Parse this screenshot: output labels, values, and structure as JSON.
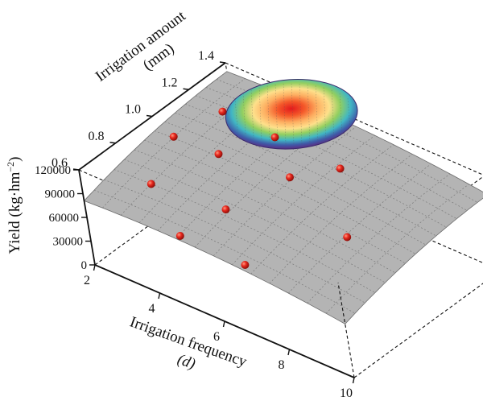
{
  "chart_data": {
    "type": "surface3d",
    "x_axis": {
      "label_line1": "Irrigation frequency",
      "label_line2": "(d)",
      "range": [
        2,
        10
      ],
      "ticks": [
        "2",
        "4",
        "6",
        "8",
        "10"
      ]
    },
    "y_axis": {
      "label_line1": "Irrigation amount",
      "label_line2": "(mm)",
      "range": [
        0.6,
        1.4
      ],
      "ticks": [
        "0.6",
        "0.8",
        "1.0",
        "1.2",
        "1.4"
      ]
    },
    "z_axis": {
      "label_main": "Yield (kg·hm",
      "label_sup": "−2",
      "label_end": ")",
      "range": [
        0,
        120000
      ],
      "ticks": [
        "0",
        "30000",
        "60000",
        "90000",
        "120000"
      ]
    },
    "surface": {
      "color": "#b4b4b4",
      "grid_color": "#7a7a7a"
    },
    "heat_spot": {
      "center": {
        "x": 4.4,
        "y": 1.33
      },
      "colors": [
        "#e31a1c",
        "#fd8d3c",
        "#fee08b",
        "#91cf60",
        "#41b6c4",
        "#3f5aa8",
        "#5b2c83"
      ]
    },
    "points": [
      {
        "x": 2.6,
        "y": 1.0,
        "z": 105000
      },
      {
        "x": 3.0,
        "y": 1.2,
        "z": 110000
      },
      {
        "x": 3.3,
        "y": 0.75,
        "z": 100000
      },
      {
        "x": 4.0,
        "y": 1.0,
        "z": 108000
      },
      {
        "x": 4.6,
        "y": 1.2,
        "z": 106000
      },
      {
        "x": 5.9,
        "y": 1.05,
        "z": 104000
      },
      {
        "x": 6.6,
        "y": 1.2,
        "z": 102000
      },
      {
        "x": 8.5,
        "y": 0.9,
        "z": 100000
      },
      {
        "x": 5.0,
        "y": 0.6,
        "z": 90000
      },
      {
        "x": 7.0,
        "y": 0.6,
        "z": 89000
      },
      {
        "x": 5.3,
        "y": 0.8,
        "z": 95000
      }
    ],
    "point_color": "#e8281e"
  }
}
